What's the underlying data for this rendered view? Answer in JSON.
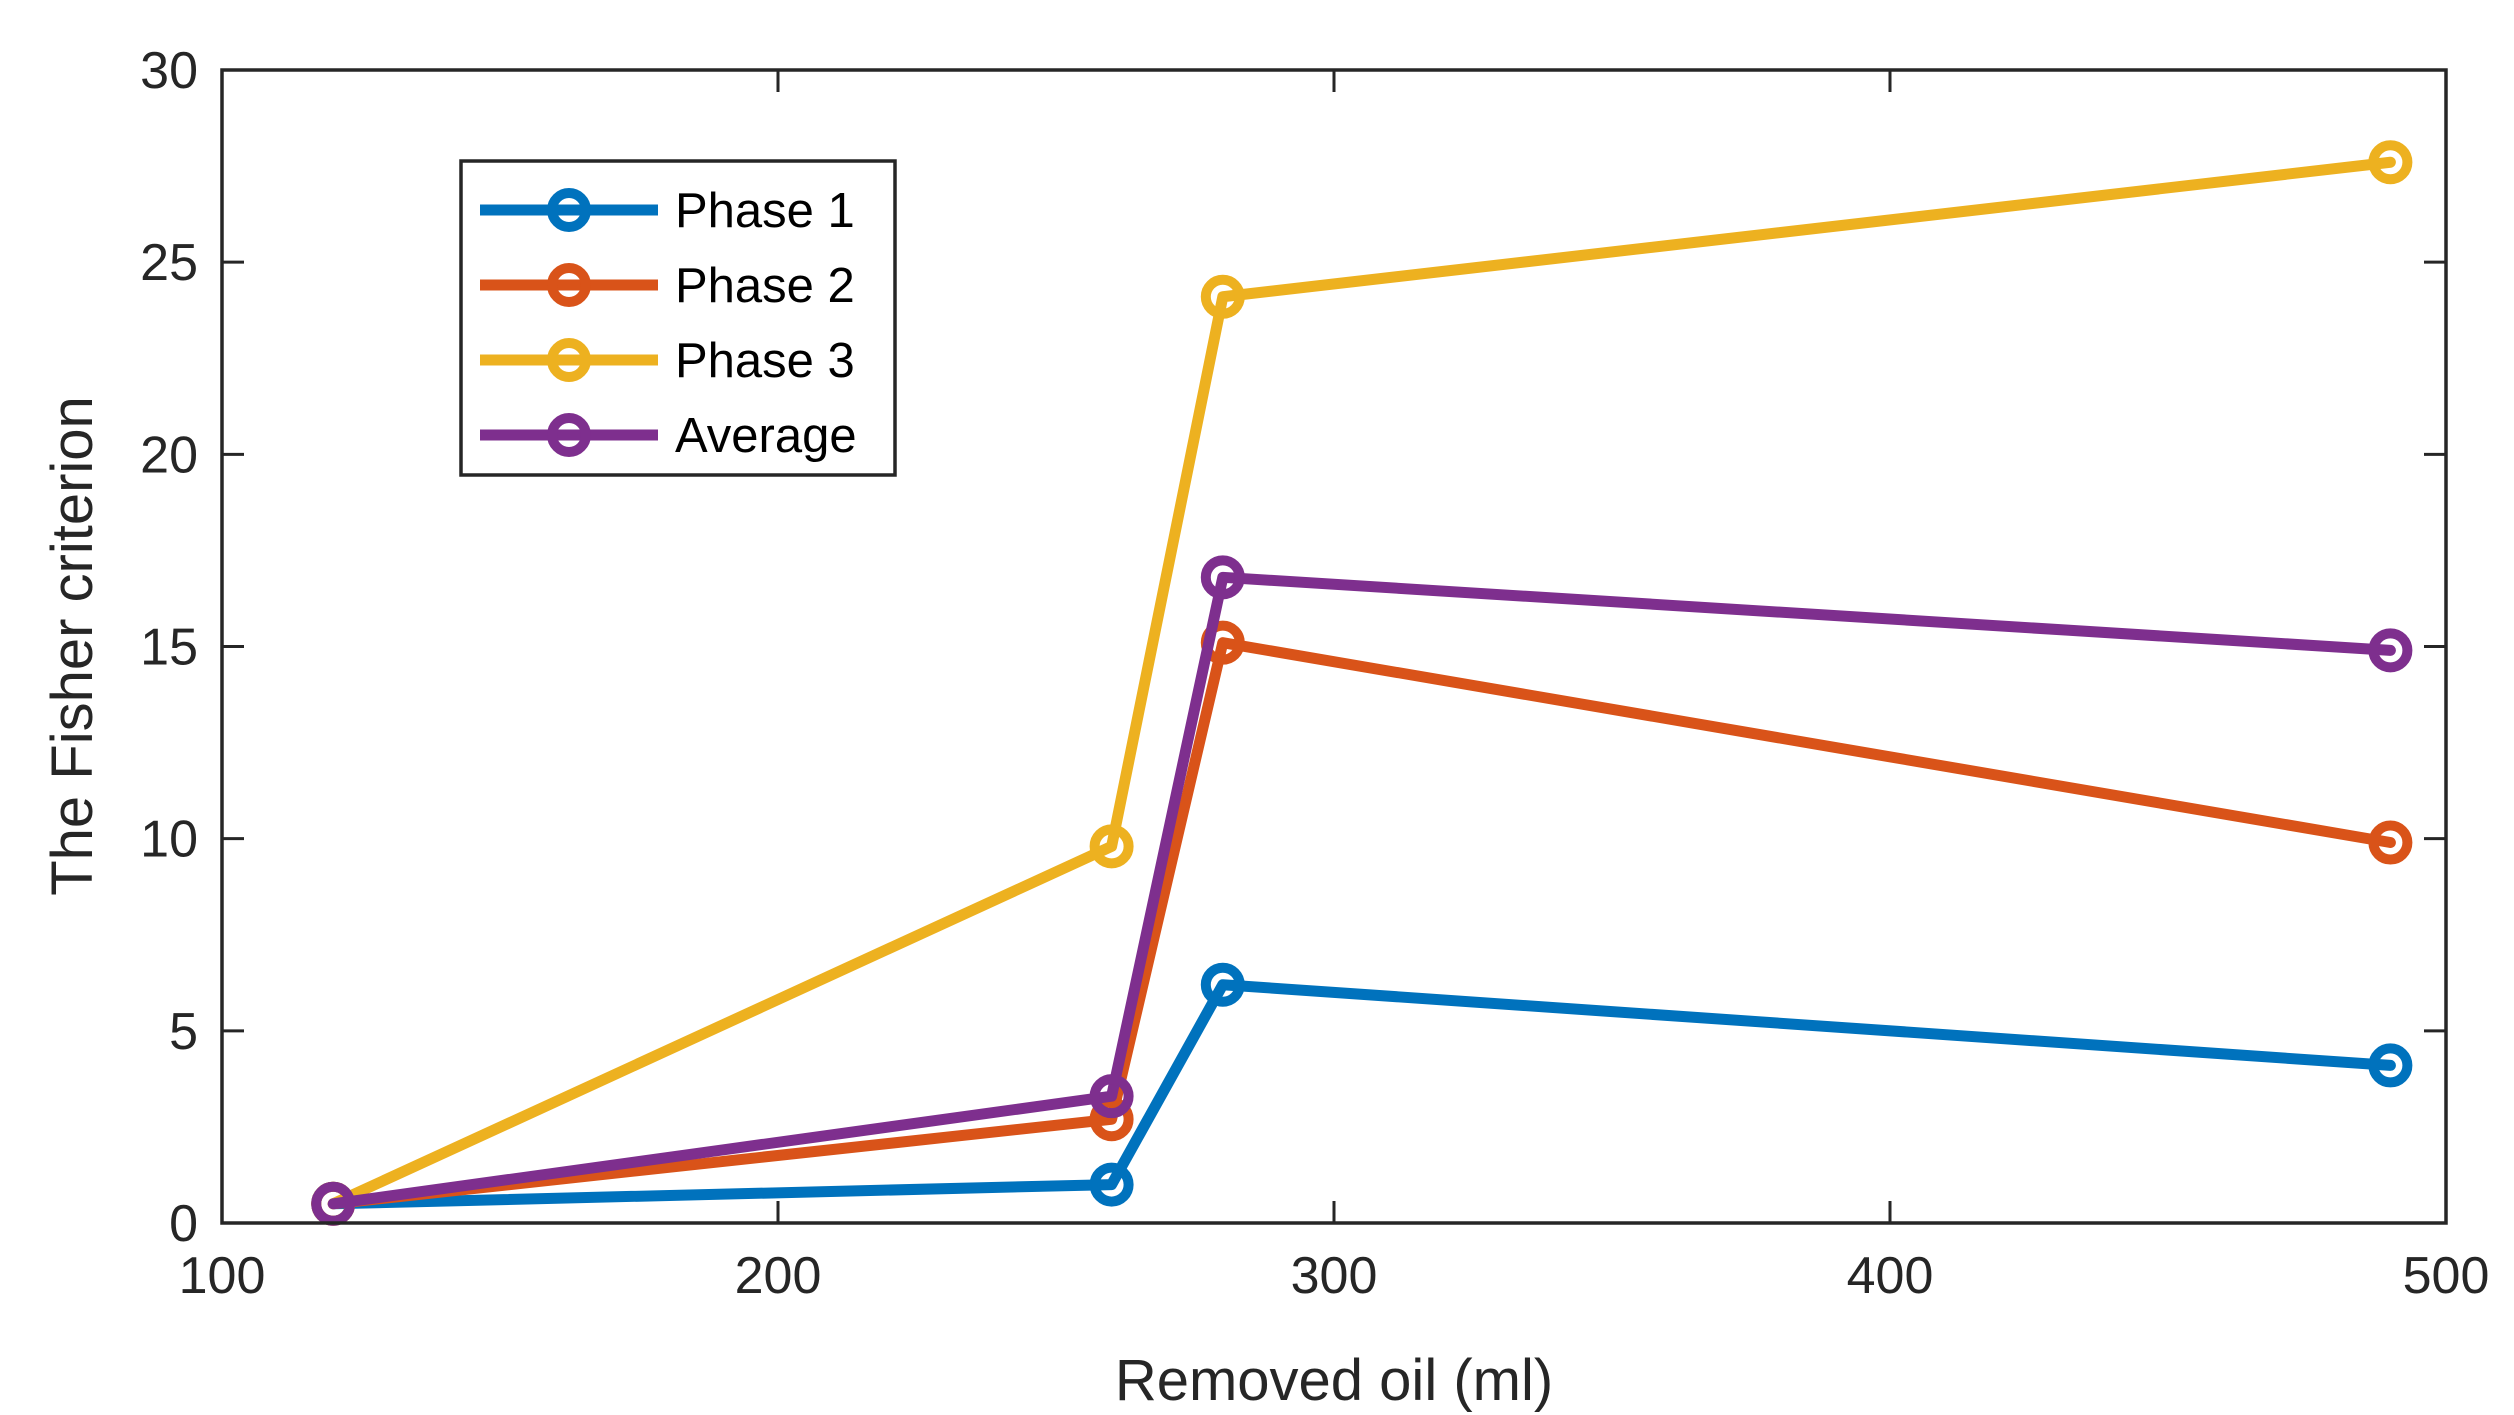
{
  "chart_data": {
    "type": "line",
    "title": "",
    "xlabel": "Removed oil (ml)",
    "ylabel": "The Fisher criterion",
    "xlim": [
      100,
      500
    ],
    "ylim": [
      0,
      30
    ],
    "xticks": [
      100,
      200,
      300,
      400,
      500
    ],
    "yticks": [
      0,
      5,
      10,
      15,
      20,
      25,
      30
    ],
    "grid": false,
    "legend_position": "top-left",
    "x": [
      120,
      260,
      280,
      490
    ],
    "series": [
      {
        "name": "Phase 1",
        "color": "#0072BD",
        "values": [
          0.5,
          1.0,
          6.2,
          4.1
        ]
      },
      {
        "name": "Phase 2",
        "color": "#D95319",
        "values": [
          0.5,
          2.7,
          15.1,
          9.9
        ]
      },
      {
        "name": "Phase 3",
        "color": "#EDB120",
        "values": [
          0.5,
          9.8,
          24.1,
          27.6
        ]
      },
      {
        "name": "Average",
        "color": "#7E2F8E",
        "values": [
          0.5,
          3.3,
          16.8,
          14.9
        ]
      }
    ]
  }
}
